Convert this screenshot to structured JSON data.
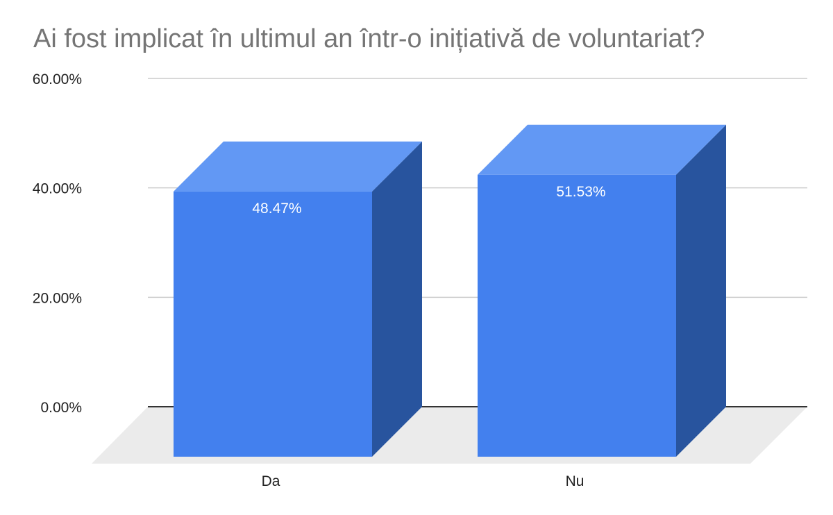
{
  "chart_data": {
    "type": "bar",
    "title": "Ai fost implicat în ultimul an într-o inițiativă de voluntariat?",
    "categories": [
      "Da",
      "Nu"
    ],
    "values": [
      48.47,
      51.53
    ],
    "data_labels": [
      "48.47%",
      "51.53%"
    ],
    "ylim": [
      0,
      60
    ],
    "yticks": [
      0,
      20,
      40,
      60
    ],
    "ytick_labels": [
      "0.00%",
      "20.00%",
      "40.00%",
      "60.00%"
    ],
    "xlabel": "",
    "ylabel": "",
    "grid": true,
    "style": "3d",
    "colors": {
      "bar_front": "#4380ee",
      "bar_top": "#6298f4",
      "bar_side": "#28549e",
      "floor": "#ebebeb",
      "grid": "#cccccc",
      "baseline": "#333333",
      "title": "#757575"
    }
  }
}
